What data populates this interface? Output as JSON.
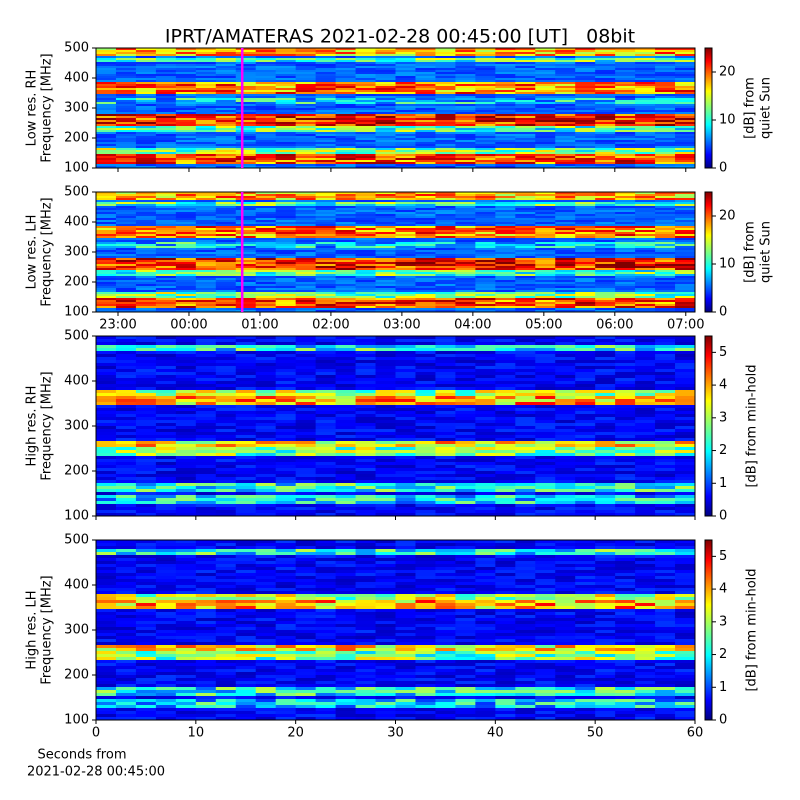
{
  "title": "IPRT/AMATERAS 2021-02-28 00:45:00 [UT]   08bit",
  "chart_data": [
    {
      "type": "heatmap",
      "ylabel": [
        "Low res. RH",
        "Frequency [MHz]"
      ],
      "ylim": [
        100,
        500
      ],
      "yticks": [
        100,
        200,
        300,
        400,
        500
      ],
      "xlim": [
        22.69,
        31.13
      ],
      "xticks": [
        23,
        24,
        25,
        26,
        27,
        28,
        29,
        30,
        31
      ],
      "xticklabels": false,
      "marker_x": 24.75,
      "marker_color": "#ff00ff",
      "colormap": "jet",
      "colorbar_label": [
        "[dB] from",
        "quiet Sun"
      ],
      "clim": [
        0,
        25
      ],
      "cticks": [
        0,
        10,
        20
      ]
    },
    {
      "type": "heatmap",
      "ylabel": [
        "Low res. LH",
        "Frequency [MHz]"
      ],
      "ylim": [
        100,
        500
      ],
      "yticks": [
        100,
        200,
        300,
        400,
        500
      ],
      "xlim": [
        22.69,
        31.13
      ],
      "xticks": [
        {
          "value": 23,
          "label": "23:00"
        },
        {
          "value": 24,
          "label": "00:00"
        },
        {
          "value": 25,
          "label": "01:00"
        },
        {
          "value": 26,
          "label": "02:00"
        },
        {
          "value": 27,
          "label": "03:00"
        },
        {
          "value": 28,
          "label": "04:00"
        },
        {
          "value": 29,
          "label": "05:00"
        },
        {
          "value": 30,
          "label": "06:00"
        },
        {
          "value": 31,
          "label": "07:00"
        }
      ],
      "xticklabels": true,
      "marker_x": 24.75,
      "marker_color": "#ff00ff",
      "colormap": "jet",
      "colorbar_label": [
        "[dB] from",
        "quiet Sun"
      ],
      "clim": [
        0,
        25
      ],
      "cticks": [
        0,
        10,
        20
      ]
    },
    {
      "type": "heatmap",
      "ylabel": [
        "High res. RH",
        "Frequency [MHz]"
      ],
      "ylim": [
        100,
        500
      ],
      "yticks": [
        100,
        200,
        300,
        400,
        500
      ],
      "xlim": [
        0,
        60
      ],
      "xticks": [
        0,
        10,
        20,
        30,
        40,
        50,
        60
      ],
      "xticklabels": false,
      "colormap": "jet",
      "colorbar_label": [
        "[dB] from min-hold"
      ],
      "clim": [
        0,
        5.5
      ],
      "cticks": [
        0,
        1,
        2,
        3,
        4,
        5
      ]
    },
    {
      "type": "heatmap",
      "ylabel": [
        "High res. LH",
        "Frequency [MHz]"
      ],
      "ylim": [
        100,
        500
      ],
      "yticks": [
        100,
        200,
        300,
        400,
        500
      ],
      "xlim": [
        0,
        60
      ],
      "xticks": [
        0,
        10,
        20,
        30,
        40,
        50,
        60
      ],
      "xticklabels": true,
      "colormap": "jet",
      "xlabel": [
        "Seconds from",
        "2021-02-28 00:45:00"
      ],
      "colorbar_label": [
        "[dB] from min-hold"
      ],
      "clim": [
        0,
        5.5
      ],
      "cticks": [
        0,
        1,
        2,
        3,
        4,
        5
      ]
    }
  ]
}
